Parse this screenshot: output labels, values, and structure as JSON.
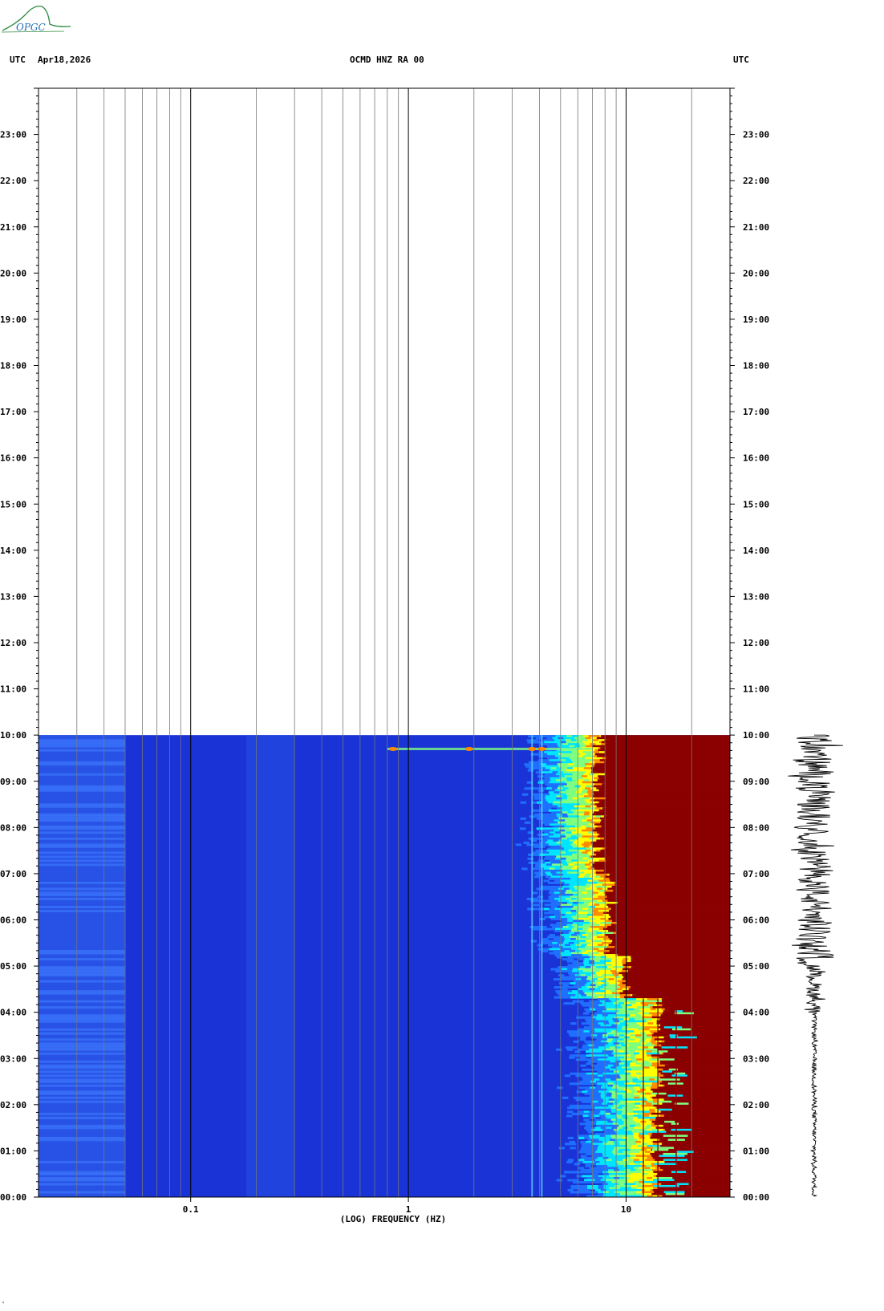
{
  "header": {
    "tz_left": "UTC",
    "date": "Apr18,2026",
    "station": "OCMD HNZ RA 00",
    "tz_right": "UTC"
  },
  "logo": {
    "text": "OPGC",
    "color": "#2e8b3e"
  },
  "footer": {
    "mark": "\""
  },
  "chart_data": {
    "type": "heatmap",
    "title": "OCMD HNZ RA 00",
    "xlabel": "(LOG) FREQUENCY (HZ)",
    "x_scale": "log",
    "x_range_hz": [
      0.02,
      30
    ],
    "x_ticks": [
      0.1,
      1,
      10
    ],
    "x_tick_labels": [
      "0.1",
      "1",
      "10"
    ],
    "y_range_hours": [
      0,
      24
    ],
    "y_tick_labels": [
      "00:00",
      "01:00",
      "02:00",
      "03:00",
      "04:00",
      "05:00",
      "06:00",
      "07:00",
      "08:00",
      "09:00",
      "10:00",
      "11:00",
      "12:00",
      "13:00",
      "14:00",
      "15:00",
      "16:00",
      "17:00",
      "18:00",
      "19:00",
      "20:00",
      "21:00",
      "22:00",
      "23:00"
    ],
    "data_end_hour": 10,
    "grid": true,
    "colors": {
      "low": "#1a33d6",
      "mid": "#00e5ff",
      "high": "#ffff00",
      "saturated": "#8b0000"
    },
    "time_bands": [
      {
        "start_hour": 0,
        "end_hour": 4.3,
        "saturation_hz": 14,
        "edge_hz": 7.5
      },
      {
        "start_hour": 4.3,
        "end_hour": 5.2,
        "saturation_hz": 10,
        "edge_hz": 6.5
      },
      {
        "start_hour": 5.2,
        "end_hour": 7.0,
        "saturation_hz": 8.5,
        "edge_hz": 5.5
      },
      {
        "start_hour": 7.0,
        "end_hour": 10.0,
        "saturation_hz": 7.5,
        "edge_hz": 5.0
      }
    ],
    "spectral_lines_hz": [
      3.7,
      4.1,
      12,
      14,
      17
    ],
    "event_hour": 9.7,
    "seismogram_hours": [
      0,
      10
    ]
  }
}
